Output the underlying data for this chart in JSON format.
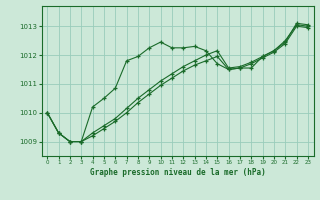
{
  "title": "Graphe pression niveau de la mer (hPa)",
  "background_color": "#cce8d8",
  "grid_color": "#99ccbb",
  "line_color": "#1a6b2a",
  "xlim": [
    -0.5,
    23.5
  ],
  "ylim": [
    1008.5,
    1013.7
  ],
  "yticks": [
    1009,
    1010,
    1011,
    1012,
    1013
  ],
  "xticks": [
    0,
    1,
    2,
    3,
    4,
    5,
    6,
    7,
    8,
    9,
    10,
    11,
    12,
    13,
    14,
    15,
    16,
    17,
    18,
    19,
    20,
    21,
    22,
    23
  ],
  "series1": [
    1010.0,
    1009.3,
    1009.0,
    1009.0,
    1010.2,
    1010.5,
    1010.85,
    1011.8,
    1011.95,
    1012.25,
    1012.45,
    1012.25,
    1012.25,
    1012.3,
    1012.15,
    1011.7,
    1011.5,
    1011.55,
    1011.55,
    1011.95,
    1012.15,
    1012.5,
    1013.05,
    1013.0
  ],
  "series2": [
    1010.0,
    1009.3,
    1009.0,
    1009.0,
    1009.2,
    1009.45,
    1009.7,
    1010.0,
    1010.35,
    1010.65,
    1010.95,
    1011.2,
    1011.45,
    1011.65,
    1011.8,
    1011.95,
    1011.5,
    1011.55,
    1011.7,
    1011.9,
    1012.1,
    1012.4,
    1013.0,
    1012.95
  ],
  "series3": [
    1010.0,
    1009.3,
    1009.0,
    1009.0,
    1009.3,
    1009.55,
    1009.8,
    1010.15,
    1010.5,
    1010.8,
    1011.1,
    1011.35,
    1011.6,
    1011.8,
    1012.0,
    1012.15,
    1011.55,
    1011.6,
    1011.75,
    1011.95,
    1012.15,
    1012.45,
    1013.1,
    1013.05
  ]
}
